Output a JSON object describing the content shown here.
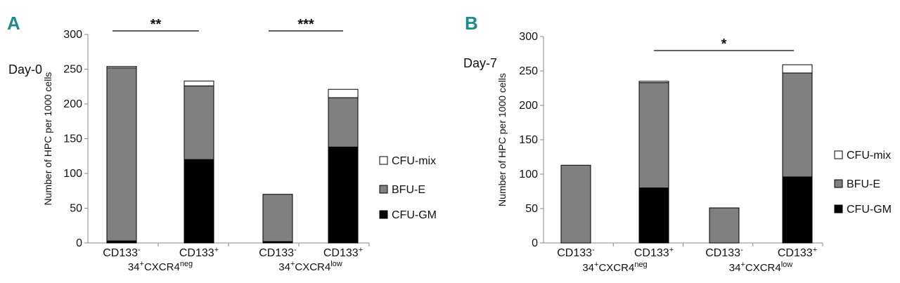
{
  "chart_data": [
    {
      "type": "bar",
      "stacked": true,
      "panel": "A",
      "day_label": "Day-0",
      "ylabel": "Number of HPC per 1000 cells",
      "ylim": [
        0,
        300
      ],
      "yticks": [
        "0",
        "50",
        "100",
        "150",
        "200",
        "250",
        "300"
      ],
      "categories": [
        "CD133",
        "CD133",
        "CD133",
        "CD133"
      ],
      "category_superscripts": [
        "-",
        "+",
        "-",
        "+"
      ],
      "groups": [
        {
          "base": "34",
          "sup1": "+",
          "mid": "CXCR4",
          "sup2": "neg"
        },
        {
          "base": "34",
          "sup1": "+",
          "mid": "CXCR4",
          "sup2": "low"
        }
      ],
      "series": [
        {
          "name": "CFU-GM",
          "color": "#000000",
          "values": [
            3,
            120,
            2,
            138
          ]
        },
        {
          "name": "BFU-E",
          "color": "#808080",
          "values": [
            249,
            106,
            68,
            71
          ]
        },
        {
          "name": "CFU-mix",
          "color": "#ffffff",
          "values": [
            2,
            7,
            0,
            12
          ]
        }
      ],
      "legend_order": [
        "CFU-mix",
        "BFU-E",
        "CFU-GM"
      ],
      "significance": [
        {
          "from": 0,
          "to": 1,
          "label": "**"
        },
        {
          "from": 2,
          "to": 3,
          "label": "***"
        }
      ]
    },
    {
      "type": "bar",
      "stacked": true,
      "panel": "B",
      "day_label": "Day-7",
      "ylabel": "Number of HPC per 1000 cells",
      "ylim": [
        0,
        300
      ],
      "yticks": [
        "0",
        "50",
        "100",
        "150",
        "200",
        "250",
        "300"
      ],
      "categories": [
        "CD133",
        "CD133",
        "CD133",
        "CD133"
      ],
      "category_superscripts": [
        "-",
        "+",
        "-",
        "+"
      ],
      "groups": [
        {
          "base": "34",
          "sup1": "+",
          "mid": "CXCR4",
          "sup2": "neg"
        },
        {
          "base": "34",
          "sup1": "+",
          "mid": "CXCR4",
          "sup2": "low"
        }
      ],
      "series": [
        {
          "name": "CFU-GM",
          "color": "#000000",
          "values": [
            0,
            80,
            0,
            96
          ]
        },
        {
          "name": "BFU-E",
          "color": "#808080",
          "values": [
            113,
            153,
            51,
            151
          ]
        },
        {
          "name": "CFU-mix",
          "color": "#ffffff",
          "values": [
            0,
            2,
            0,
            12
          ]
        }
      ],
      "legend_order": [
        "CFU-mix",
        "BFU-E",
        "CFU-GM"
      ],
      "significance": [
        {
          "from": 1,
          "to": 3,
          "label": "*"
        }
      ]
    }
  ]
}
